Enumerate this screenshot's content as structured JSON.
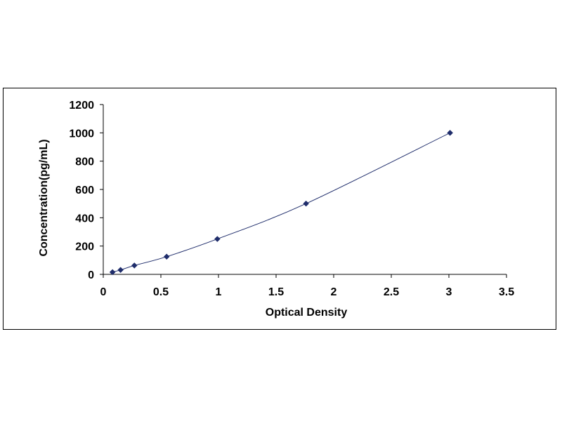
{
  "chart_data": {
    "type": "scatter",
    "title": "",
    "xlabel": "Optical Density",
    "ylabel": "Concentration(pg/mL)",
    "xlim": [
      0,
      3.5
    ],
    "ylim": [
      0,
      1200
    ],
    "x_ticks": [
      "0",
      "0.5",
      "1",
      "1.5",
      "2",
      "2.5",
      "3",
      "3.5"
    ],
    "y_ticks": [
      "0",
      "200",
      "400",
      "600",
      "800",
      "1000",
      "1200"
    ],
    "grid": false,
    "legend": "none",
    "series": [
      {
        "x": [
          0.08,
          0.15,
          0.27,
          0.55,
          0.99,
          1.76,
          3.01
        ],
        "y": [
          15.6,
          31.2,
          62.5,
          125,
          250,
          500,
          1000
        ],
        "marker": "diamond",
        "color": "#1f2d6b",
        "trendline": true
      }
    ]
  }
}
